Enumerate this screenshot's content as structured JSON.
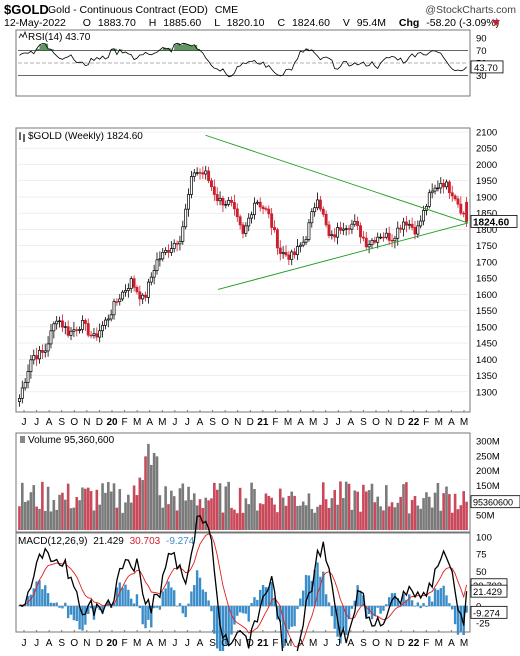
{
  "header": {
    "ticker": "$GOLD",
    "name": "Gold - Continuous Contract (EOD)",
    "exchange": "CME",
    "watermark": "@StockCharts.com",
    "date": "12-May-2022",
    "ohlc": {
      "o_label": "O",
      "o": "1883.70",
      "h_label": "H",
      "h": "1885.60",
      "l_label": "L",
      "l": "1820.10",
      "c_label": "C",
      "c": "1824.60",
      "v_label": "V",
      "v": "95.4M",
      "chg_label": "Chg",
      "chg": "-58.20 (-3.09%)"
    }
  },
  "colors": {
    "up": "#000000",
    "down": "#cc1f2e",
    "trend": "#1d9b1d",
    "rsi_fill": "#3c7a3c",
    "macd_hist": "#3a8dc9",
    "signal": "#e02020",
    "vol_up": "#7a7a7a",
    "vol_down": "#c9485a"
  },
  "rsi": {
    "label": "RSI(14) 43.70",
    "value_tag": "43.70",
    "ticks": [
      "90",
      "70",
      "50",
      "30"
    ],
    "min": 0,
    "max": 100
  },
  "price": {
    "label": "$GOLD (Weekly) 1824.60",
    "last_tag": "1824.60",
    "ticks": [
      "2100",
      "2050",
      "2000",
      "1950",
      "1900",
      "1850",
      "1800",
      "1750",
      "1700",
      "1650",
      "1600",
      "1550",
      "1500",
      "1450",
      "1400",
      "1350",
      "1300"
    ]
  },
  "volume": {
    "label": "Volume 95,360,600",
    "tag": "95360600",
    "ticks": [
      "300M",
      "250M",
      "200M",
      "150M",
      "100M",
      "50M"
    ]
  },
  "macd": {
    "label_name": "MACD(12,26,9)",
    "label_macd": "21.429",
    "label_signal": "30.703",
    "label_hist": "-9.274",
    "tags": [
      "30.703",
      "21.429",
      "-9.274"
    ],
    "ticks": [
      "100",
      "75",
      "50",
      "25",
      "0",
      "-25"
    ]
  },
  "x_axis_labels": [
    "J",
    "J",
    "A",
    "S",
    "O",
    "N",
    "D",
    "20",
    "F",
    "M",
    "A",
    "M",
    "J",
    "J",
    "A",
    "S",
    "O",
    "N",
    "D",
    "21",
    "F",
    "M",
    "A",
    "M",
    "J",
    "J",
    "A",
    "S",
    "O",
    "N",
    "D",
    "22",
    "F",
    "M",
    "A",
    "M"
  ],
  "chart_data": {
    "type": "candlestick",
    "title": "$GOLD (Weekly) 1824.60",
    "timeframe": "Weekly",
    "x_start": "2019-05",
    "x_end": "2022-05",
    "ylim": [
      1250,
      2100
    ],
    "approx_closes_by_month": [
      {
        "x": "2019-05",
        "close": 1280
      },
      {
        "x": "2019-06",
        "close": 1410
      },
      {
        "x": "2019-07",
        "close": 1420
      },
      {
        "x": "2019-08",
        "close": 1530
      },
      {
        "x": "2019-09",
        "close": 1480
      },
      {
        "x": "2019-10",
        "close": 1510
      },
      {
        "x": "2019-11",
        "close": 1465
      },
      {
        "x": "2019-12",
        "close": 1520
      },
      {
        "x": "2020-01",
        "close": 1590
      },
      {
        "x": "2020-02",
        "close": 1640
      },
      {
        "x": "2020-03",
        "close": 1580
      },
      {
        "x": "2020-04",
        "close": 1700
      },
      {
        "x": "2020-05",
        "close": 1740
      },
      {
        "x": "2020-06",
        "close": 1780
      },
      {
        "x": "2020-07",
        "close": 1980
      },
      {
        "x": "2020-08",
        "close": 1970
      },
      {
        "x": "2020-09",
        "close": 1890
      },
      {
        "x": "2020-10",
        "close": 1880
      },
      {
        "x": "2020-11",
        "close": 1780
      },
      {
        "x": "2020-12",
        "close": 1895
      },
      {
        "x": "2021-01",
        "close": 1850
      },
      {
        "x": "2021-02",
        "close": 1730
      },
      {
        "x": "2021-03",
        "close": 1715
      },
      {
        "x": "2021-04",
        "close": 1770
      },
      {
        "x": "2021-05",
        "close": 1905
      },
      {
        "x": "2021-06",
        "close": 1765
      },
      {
        "x": "2021-07",
        "close": 1815
      },
      {
        "x": "2021-08",
        "close": 1815
      },
      {
        "x": "2021-09",
        "close": 1755
      },
      {
        "x": "2021-10",
        "close": 1785
      },
      {
        "x": "2021-11",
        "close": 1775
      },
      {
        "x": "2021-12",
        "close": 1830
      },
      {
        "x": "2022-01",
        "close": 1795
      },
      {
        "x": "2022-02",
        "close": 1900
      },
      {
        "x": "2022-03",
        "close": 1950
      },
      {
        "x": "2022-04",
        "close": 1910
      },
      {
        "x": "2022-05",
        "close": 1824.6
      }
    ],
    "last": {
      "open": 1883.7,
      "high": 1885.6,
      "low": 1820.1,
      "close": 1824.6
    },
    "trendlines": [
      {
        "from": {
          "x": "2020-08",
          "y": 2090
        },
        "to": {
          "x": "2022-05",
          "y": 1820
        }
      },
      {
        "from": {
          "x": "2020-09",
          "y": 1615
        },
        "to": {
          "x": "2022-05",
          "y": 1820
        }
      }
    ],
    "volume_peak": {
      "x": "2020-03",
      "value": 290
    },
    "volume_last_millions": 95.36,
    "rsi_last": 43.7,
    "macd_last": 21.429,
    "signal_last": 30.703,
    "hist_last": -9.274
  }
}
